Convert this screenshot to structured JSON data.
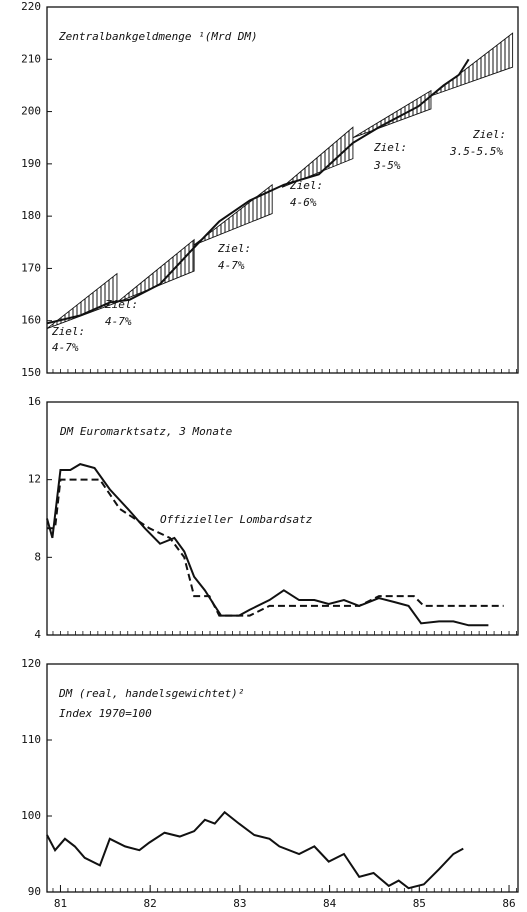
{
  "chart_data": [
    {
      "type": "line",
      "title": "Zentralbankgeldmenge ¹(Mrd DM)",
      "xlim": [
        80.85,
        86.1
      ],
      "ylim": [
        150,
        220
      ],
      "yticks": [
        150,
        160,
        170,
        180,
        190,
        200,
        210,
        220
      ],
      "series": [
        {
          "color": "#111111",
          "x": [
            80.85,
            81.22,
            81.55,
            81.77,
            82.11,
            82.49,
            82.77,
            83.11,
            83.49,
            83.88,
            84.26,
            84.55,
            84.99,
            85.13,
            85.27,
            85.44,
            85.55
          ],
          "values": [
            159.5,
            161,
            163.5,
            164,
            167,
            174,
            179,
            183,
            186,
            188,
            194,
            197,
            201,
            203,
            205,
            207,
            210
          ]
        }
      ],
      "corridors": [
        {
          "x": [
            80.85,
            81.63
          ],
          "start": 158.5,
          "lower": 163.5,
          "upper": 169
        },
        {
          "x": [
            81.63,
            82.49
          ],
          "start": 163.5,
          "lower": 169.5,
          "upper": 175.5
        },
        {
          "x": [
            82.49,
            83.36
          ],
          "start": 174.5,
          "lower": 180.5,
          "upper": 186
        },
        {
          "x": [
            83.47,
            84.26
          ],
          "start": 185.5,
          "lower": 191,
          "upper": 197
        },
        {
          "x": [
            84.26,
            85.13
          ],
          "start": 195,
          "lower": 200.5,
          "upper": 204
        },
        {
          "x": [
            85.13,
            86.04
          ],
          "start": 203,
          "lower": 208.5,
          "upper": 215
        }
      ],
      "annotations": [
        [
          "Ziel:",
          "4-7%"
        ],
        [
          "Ziel:",
          "4-7%"
        ],
        [
          "Ziel:",
          "4-7%"
        ],
        [
          "Ziel:",
          "4-6%"
        ],
        [
          "Ziel:",
          "3-5%"
        ],
        [
          "Ziel:",
          "3.5-5.5%"
        ]
      ]
    },
    {
      "type": "line",
      "xlim": [
        80.85,
        86.1
      ],
      "ylim": [
        4,
        16
      ],
      "yticks": [
        4,
        8,
        12,
        16
      ],
      "series": [
        {
          "name": "DM Euromarktsatz, 3 Monate",
          "color": "#111111",
          "dash": false,
          "x": [
            80.85,
            80.91,
            81.0,
            81.11,
            81.22,
            81.38,
            81.55,
            81.77,
            81.94,
            82.11,
            82.27,
            82.38,
            82.49,
            82.61,
            82.72,
            82.79,
            82.99,
            83.11,
            83.33,
            83.49,
            83.66,
            83.83,
            83.99,
            84.16,
            84.33,
            84.55,
            84.72,
            84.88,
            85.02,
            85.22,
            85.38,
            85.55,
            85.77
          ],
          "values": [
            10,
            9,
            12.5,
            12.5,
            12.8,
            12.6,
            11.5,
            10.4,
            9.5,
            8.7,
            9,
            8.3,
            7,
            6.3,
            5.5,
            5.0,
            5.0,
            5.3,
            5.8,
            6.3,
            5.8,
            5.8,
            5.6,
            5.8,
            5.5,
            5.9,
            5.7,
            5.5,
            4.6,
            4.7,
            4.7,
            4.5,
            4.5
          ]
        },
        {
          "name": "Offizieller Lombardsatz",
          "color": "#111111",
          "dash": true,
          "x": [
            80.85,
            80.94,
            81.0,
            81.44,
            81.66,
            81.99,
            82.22,
            82.38,
            82.49,
            82.66,
            82.77,
            83.11,
            83.33,
            84.33,
            84.55,
            84.94,
            85.05,
            85.94
          ],
          "values": [
            9.5,
            9.5,
            12,
            12,
            10.5,
            9.5,
            9,
            8,
            6,
            6,
            5,
            5,
            5.5,
            5.5,
            6,
            6,
            5.5,
            5.5
          ]
        }
      ]
    },
    {
      "type": "line",
      "title": "DM (real, handelsgewichtet)²",
      "subtitle": "Index 1970=100",
      "xlim": [
        80.85,
        86.1
      ],
      "ylim": [
        90,
        120
      ],
      "yticks": [
        90,
        100,
        110,
        120
      ],
      "xticks": [
        81,
        82,
        83,
        84,
        85,
        86
      ],
      "series": [
        {
          "color": "#111111",
          "x": [
            80.85,
            80.94,
            81.05,
            81.16,
            81.27,
            81.44,
            81.55,
            81.72,
            81.88,
            81.99,
            82.16,
            82.33,
            82.49,
            82.61,
            82.72,
            82.83,
            82.99,
            83.16,
            83.33,
            83.44,
            83.66,
            83.83,
            83.99,
            84.16,
            84.33,
            84.49,
            84.66,
            84.77,
            84.88,
            85.05,
            85.22,
            85.38,
            85.49
          ],
          "values": [
            97.5,
            95.5,
            97,
            96,
            94.5,
            93.5,
            97,
            96,
            95.5,
            96.5,
            97.8,
            97.3,
            98,
            99.5,
            99,
            100.5,
            99,
            97.5,
            97,
            96,
            95,
            96,
            94,
            95,
            92,
            92.5,
            90.8,
            91.5,
            90.5,
            91,
            93,
            95,
            95.7
          ]
        }
      ]
    }
  ]
}
